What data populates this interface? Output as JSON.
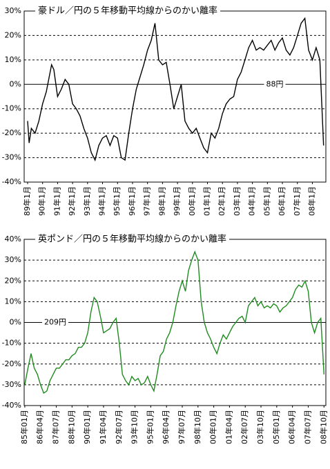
{
  "chart_data": [
    {
      "type": "line",
      "title": "豪ドル／円の５年移動平均線からのかい離率",
      "annotation": "88円",
      "ylim": [
        -40,
        30
      ],
      "yticks": [
        {
          "value": 30,
          "label": "30%"
        },
        {
          "value": 20,
          "label": "20%"
        },
        {
          "value": 10,
          "label": "10%"
        },
        {
          "value": 0,
          "label": "0%"
        },
        {
          "value": -10,
          "label": "-10%"
        },
        {
          "value": -20,
          "label": "-20%"
        },
        {
          "value": -30,
          "label": "-30%"
        },
        {
          "value": -40,
          "label": "-40%"
        }
      ],
      "xlim": [
        1988.77,
        2008.9
      ],
      "xticks": [
        {
          "value": 1989,
          "label": "89年1月"
        },
        {
          "value": 1990,
          "label": "90年1月"
        },
        {
          "value": 1991,
          "label": "91年1月"
        },
        {
          "value": 1992,
          "label": "92年1月"
        },
        {
          "value": 1993,
          "label": "93年1月"
        },
        {
          "value": 1994,
          "label": "94年1月"
        },
        {
          "value": 1995,
          "label": "95年1月"
        },
        {
          "value": 1996,
          "label": "96年1月"
        },
        {
          "value": 1997,
          "label": "97年1月"
        },
        {
          "value": 1998,
          "label": "98年1月"
        },
        {
          "value": 1999,
          "label": "99年1月"
        },
        {
          "value": 2000,
          "label": "00年1月"
        },
        {
          "value": 2001,
          "label": "01年1月"
        },
        {
          "value": 2002,
          "label": "02年1月"
        },
        {
          "value": 2003,
          "label": "03年1月"
        },
        {
          "value": 2004,
          "label": "04年1月"
        },
        {
          "value": 2005,
          "label": "05年1月"
        },
        {
          "value": 2006,
          "label": "06年1月"
        },
        {
          "value": 2007,
          "label": "07年1月"
        },
        {
          "value": 2008,
          "label": "08年1月"
        }
      ],
      "grid": true,
      "series": [
        {
          "color": "#000000",
          "x": [
            1989,
            1989.1,
            1989.25,
            1989.5,
            1989.75,
            1990,
            1990.25,
            1990.5,
            1990.6,
            1990.75,
            1991,
            1991.25,
            1991.5,
            1991.75,
            1992,
            1992.25,
            1992.5,
            1992.75,
            1993,
            1993.25,
            1993.5,
            1993.75,
            1994,
            1994.25,
            1994.5,
            1994.75,
            1995,
            1995.25,
            1995.5,
            1995.75,
            1996,
            1996.25,
            1996.5,
            1996.75,
            1997,
            1997.25,
            1997.5,
            1997.75,
            1998,
            1998.25,
            1998.5,
            1998.75,
            1999,
            1999.25,
            1999.5,
            1999.75,
            2000,
            2000.25,
            2000.5,
            2000.75,
            2001,
            2001.25,
            2001.5,
            2001.75,
            2002,
            2002.25,
            2002.5,
            2002.75,
            2003,
            2003.25,
            2003.5,
            2003.75,
            2004,
            2004.25,
            2004.5,
            2004.75,
            2005,
            2005.25,
            2005.5,
            2005.75,
            2006,
            2006.25,
            2006.5,
            2006.75,
            2007,
            2007.25,
            2007.5,
            2007.75,
            2008,
            2008.25,
            2008.5,
            2008.75
          ],
          "values": [
            -15,
            -24,
            -18,
            -20,
            -15,
            -8,
            -3,
            5,
            8,
            6,
            -5,
            -2,
            2,
            0,
            -8,
            -10,
            -13,
            -18,
            -22,
            -28,
            -31,
            -25,
            -22,
            -21,
            -25,
            -21,
            -22,
            -30,
            -31,
            -20,
            -10,
            -2,
            3,
            8,
            14,
            18,
            25,
            10,
            8,
            9,
            0,
            -10,
            -5,
            0,
            -15,
            -18,
            -20,
            -18,
            -22,
            -26,
            -28,
            -20,
            -22,
            -18,
            -12,
            -8,
            -6,
            -5,
            2,
            5,
            10,
            15,
            18,
            14,
            15,
            14,
            16,
            18,
            14,
            17,
            19,
            14,
            12,
            15,
            20,
            25,
            27,
            14,
            10,
            15,
            10,
            -25
          ]
        }
      ]
    },
    {
      "type": "line",
      "title": "英ポンド／円の５年移動平均線からのかい離率",
      "annotation": "209円",
      "ylim": [
        -40,
        40
      ],
      "yticks": [
        {
          "value": 40,
          "label": "40%"
        },
        {
          "value": 30,
          "label": "30%"
        },
        {
          "value": 20,
          "label": "20%"
        },
        {
          "value": 10,
          "label": "10%"
        },
        {
          "value": 0,
          "label": "0%"
        },
        {
          "value": -10,
          "label": "-10%"
        },
        {
          "value": -20,
          "label": "-20%"
        },
        {
          "value": -30,
          "label": "-30%"
        },
        {
          "value": -40,
          "label": "-40%"
        }
      ],
      "xlim": [
        1984.95,
        2008.9
      ],
      "xticks": [
        {
          "value": 1985,
          "label": "85年01月"
        },
        {
          "value": 1986.25,
          "label": "86年04月"
        },
        {
          "value": 1987.5,
          "label": "87年07月"
        },
        {
          "value": 1988.75,
          "label": "88年10月"
        },
        {
          "value": 1990,
          "label": "90年01月"
        },
        {
          "value": 1991.25,
          "label": "91年04月"
        },
        {
          "value": 1992.5,
          "label": "92年07月"
        },
        {
          "value": 1993.75,
          "label": "93年10月"
        },
        {
          "value": 1995,
          "label": "95年01月"
        },
        {
          "value": 1996.25,
          "label": "96年04月"
        },
        {
          "value": 1997.5,
          "label": "97年07月"
        },
        {
          "value": 1998.75,
          "label": "98年10月"
        },
        {
          "value": 2000,
          "label": "00年01月"
        },
        {
          "value": 2001.25,
          "label": "01年04月"
        },
        {
          "value": 2002.5,
          "label": "02年07月"
        },
        {
          "value": 2003.75,
          "label": "03年10月"
        },
        {
          "value": 2005,
          "label": "05年01月"
        },
        {
          "value": 2006.25,
          "label": "06年04月"
        },
        {
          "value": 2007.5,
          "label": "07年07月"
        },
        {
          "value": 2008.75,
          "label": "08年10月"
        }
      ],
      "grid": true,
      "series": [
        {
          "color": "#1f8a1f",
          "x": [
            1985,
            1985.25,
            1985.5,
            1985.75,
            1986,
            1986.25,
            1986.5,
            1986.75,
            1987,
            1987.25,
            1987.5,
            1987.75,
            1988,
            1988.25,
            1988.5,
            1988.75,
            1989,
            1989.25,
            1989.5,
            1989.75,
            1990,
            1990.25,
            1990.5,
            1990.75,
            1991,
            1991.25,
            1991.5,
            1991.75,
            1992,
            1992.25,
            1992.5,
            1992.75,
            1993,
            1993.25,
            1993.5,
            1993.75,
            1994,
            1994.25,
            1994.5,
            1994.75,
            1995,
            1995.25,
            1995.5,
            1995.75,
            1996,
            1996.25,
            1996.5,
            1996.75,
            1997,
            1997.25,
            1997.5,
            1997.75,
            1998,
            1998.25,
            1998.5,
            1998.75,
            1999,
            1999.25,
            1999.5,
            1999.75,
            2000,
            2000.25,
            2000.5,
            2000.75,
            2001,
            2001.25,
            2001.5,
            2001.75,
            2002,
            2002.25,
            2002.5,
            2002.75,
            2003,
            2003.25,
            2003.5,
            2003.75,
            2004,
            2004.25,
            2004.5,
            2004.75,
            2005,
            2005.25,
            2005.5,
            2005.75,
            2006,
            2006.25,
            2006.5,
            2006.75,
            2007,
            2007.25,
            2007.5,
            2007.75,
            2008,
            2008.25,
            2008.5,
            2008.75
          ],
          "values": [
            -30,
            -22,
            -15,
            -22,
            -25,
            -30,
            -34,
            -33,
            -28,
            -25,
            -22,
            -22,
            -20,
            -18,
            -18,
            -16,
            -15,
            -12,
            -12,
            -10,
            -5,
            5,
            12,
            10,
            3,
            -5,
            -4,
            -3,
            0,
            2,
            -10,
            -25,
            -28,
            -30,
            -26,
            -28,
            -27,
            -30,
            -29,
            -26,
            -30,
            -33,
            -25,
            -16,
            -14,
            -8,
            -5,
            0,
            8,
            15,
            20,
            15,
            25,
            30,
            34,
            30,
            10,
            0,
            -5,
            -8,
            -12,
            -15,
            -10,
            -6,
            -8,
            -5,
            -2,
            0,
            2,
            3,
            0,
            8,
            10,
            12,
            8,
            10,
            7,
            8,
            7,
            9,
            8,
            5,
            7,
            8,
            10,
            12,
            16,
            18,
            17,
            20,
            15,
            0,
            -5,
            0,
            2,
            -25
          ]
        }
      ]
    }
  ]
}
